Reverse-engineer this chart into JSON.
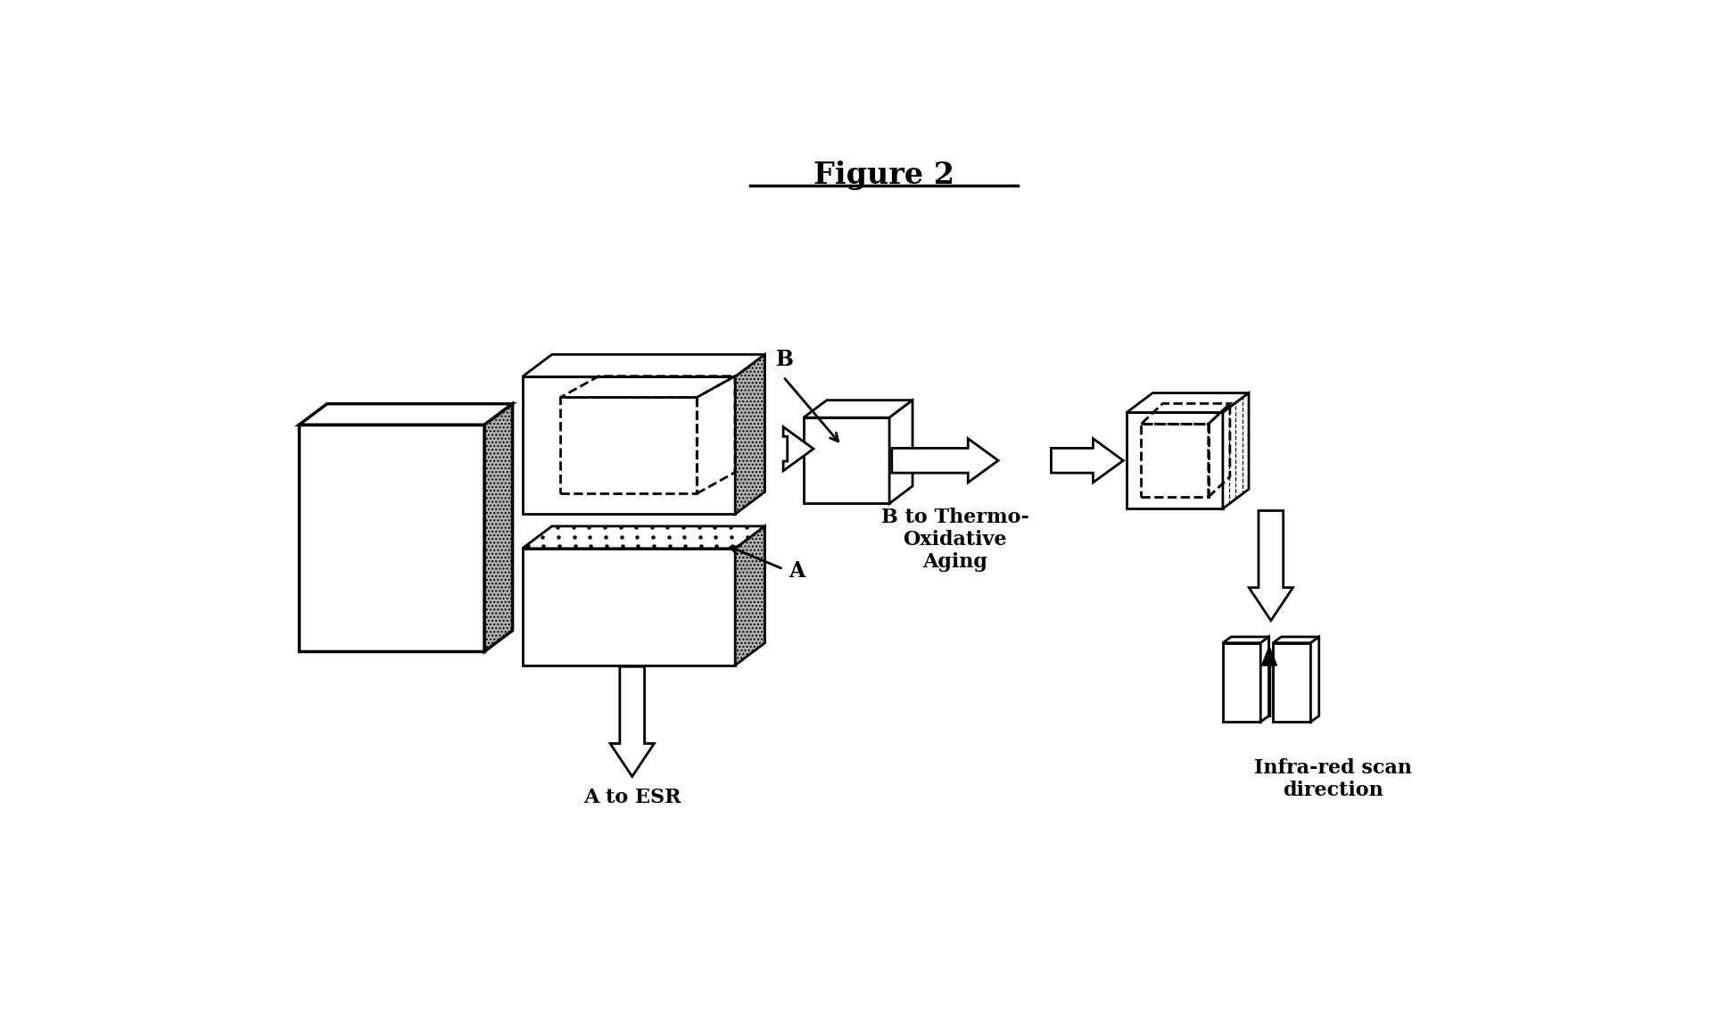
{
  "title": "Figure 2",
  "title_fontsize": 24,
  "bg_color": "#ffffff",
  "text_color": "#000000",
  "label_A": "A",
  "label_B": "B",
  "label_a_to_esr": "A to ESR",
  "label_b_to_thermo": "B to Thermo-\nOxidative\nAging",
  "label_ir": "Infra-red scan\ndirection",
  "lw": 2.0
}
